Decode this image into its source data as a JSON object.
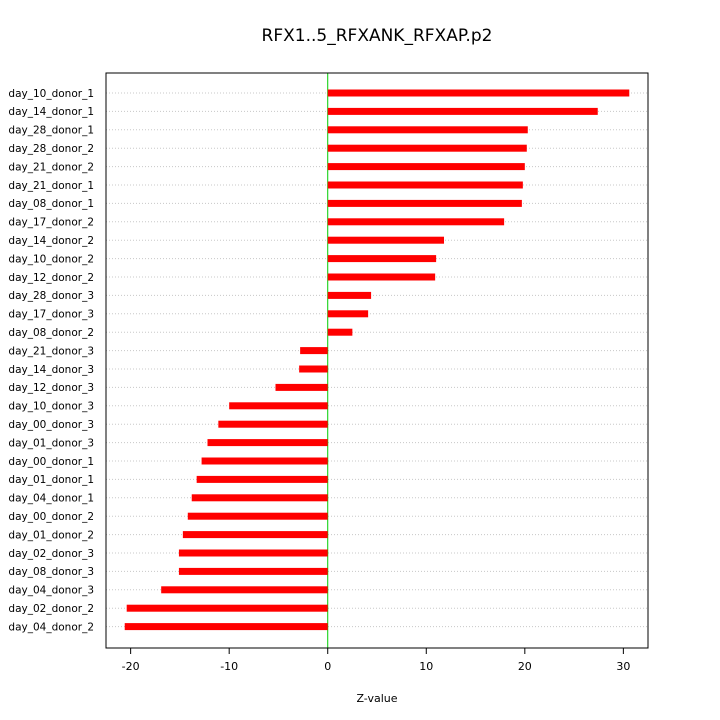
{
  "chart_data": {
    "type": "bar",
    "orientation": "horizontal",
    "title": "RFX1..5_RFXANK_RFXAP.p2",
    "xlabel": "Z-value",
    "ylabel": "",
    "xlim": [
      -22.5,
      32.5
    ],
    "xticks": [
      -20,
      -10,
      0,
      10,
      20,
      30
    ],
    "xtick_labels": [
      "-20",
      "-10",
      "0",
      "10",
      "20",
      "30"
    ],
    "grid": "horizontal dotted",
    "bar_color": "#ff0000",
    "zero_line_color": "#00cc00",
    "categories": [
      "day_10_donor_1",
      "day_14_donor_1",
      "day_28_donor_1",
      "day_28_donor_2",
      "day_21_donor_2",
      "day_21_donor_1",
      "day_08_donor_1",
      "day_17_donor_2",
      "day_14_donor_2",
      "day_10_donor_2",
      "day_12_donor_2",
      "day_28_donor_3",
      "day_17_donor_3",
      "day_08_donor_2",
      "day_21_donor_3",
      "day_14_donor_3",
      "day_12_donor_3",
      "day_10_donor_3",
      "day_00_donor_3",
      "day_01_donor_3",
      "day_00_donor_1",
      "day_01_donor_1",
      "day_04_donor_1",
      "day_00_donor_2",
      "day_01_donor_2",
      "day_02_donor_3",
      "day_08_donor_3",
      "day_04_donor_3",
      "day_02_donor_2",
      "day_04_donor_2"
    ],
    "values": [
      30.6,
      27.4,
      20.3,
      20.2,
      20.0,
      19.8,
      19.7,
      17.9,
      11.8,
      11.0,
      10.9,
      4.4,
      4.1,
      2.5,
      -2.8,
      -2.9,
      -5.3,
      -10.0,
      -11.1,
      -12.2,
      -12.8,
      -13.3,
      -13.8,
      -14.2,
      -14.7,
      -15.1,
      -15.1,
      -16.9,
      -20.4,
      -20.6
    ]
  }
}
